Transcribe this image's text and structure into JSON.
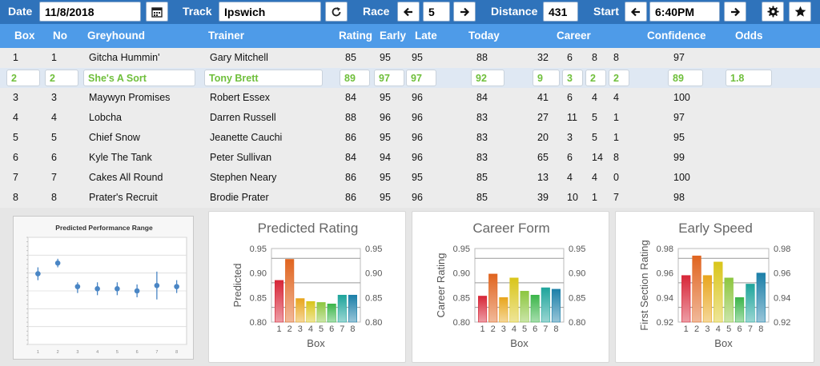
{
  "toolbar": {
    "date_label": "Date",
    "date_value": "11/8/2018",
    "track_label": "Track",
    "track_value": "Ipswich",
    "race_label": "Race",
    "race_value": "5",
    "distance_label": "Distance",
    "distance_value": "431",
    "start_label": "Start",
    "start_value": "6:40PM",
    "icons": [
      "calendar-icon",
      "refresh-icon",
      "arrow-left-icon",
      "arrow-right-icon",
      "gear-icon",
      "star-icon"
    ]
  },
  "table": {
    "headers": {
      "box": "Box",
      "no": "No",
      "greyhound": "Greyhound",
      "trainer": "Trainer",
      "rating": "Rating",
      "early": "Early",
      "late": "Late",
      "today": "Today",
      "career": "Career",
      "confidence": "Confidence",
      "odds": "Odds"
    },
    "rows": [
      {
        "box": "1",
        "no": "1",
        "greyhound": "Gitcha Hummin'",
        "trainer": "Gary Mitchell",
        "rating": "85",
        "early": "95",
        "late": "95",
        "today": "88",
        "c1": "32",
        "c2": "6",
        "c3": "8",
        "c4": "8",
        "confidence": "97",
        "odds": ""
      },
      {
        "box": "2",
        "no": "2",
        "greyhound": "She's A Sort",
        "trainer": "Tony Brett",
        "rating": "89",
        "early": "97",
        "late": "97",
        "today": "92",
        "c1": "9",
        "c2": "3",
        "c3": "2",
        "c4": "2",
        "confidence": "89",
        "odds": "1.8"
      },
      {
        "box": "3",
        "no": "3",
        "greyhound": "Maywyn Promises",
        "trainer": "Robert Essex",
        "rating": "84",
        "early": "95",
        "late": "96",
        "today": "84",
        "c1": "41",
        "c2": "6",
        "c3": "4",
        "c4": "4",
        "confidence": "100",
        "odds": ""
      },
      {
        "box": "4",
        "no": "4",
        "greyhound": "Lobcha",
        "trainer": "Darren Russell",
        "rating": "88",
        "early": "96",
        "late": "96",
        "today": "83",
        "c1": "27",
        "c2": "11",
        "c3": "5",
        "c4": "1",
        "confidence": "97",
        "odds": ""
      },
      {
        "box": "5",
        "no": "5",
        "greyhound": "Chief Snow",
        "trainer": "Jeanette Cauchi",
        "rating": "86",
        "early": "95",
        "late": "96",
        "today": "83",
        "c1": "20",
        "c2": "3",
        "c3": "5",
        "c4": "1",
        "confidence": "95",
        "odds": ""
      },
      {
        "box": "6",
        "no": "6",
        "greyhound": "Kyle The Tank",
        "trainer": "Peter Sullivan",
        "rating": "84",
        "early": "94",
        "late": "96",
        "today": "83",
        "c1": "65",
        "c2": "6",
        "c3": "14",
        "c4": "8",
        "confidence": "99",
        "odds": ""
      },
      {
        "box": "7",
        "no": "7",
        "greyhound": "Cakes All Round",
        "trainer": "Stephen Neary",
        "rating": "86",
        "early": "95",
        "late": "95",
        "today": "85",
        "c1": "13",
        "c2": "4",
        "c3": "4",
        "c4": "0",
        "confidence": "100",
        "odds": ""
      },
      {
        "box": "8",
        "no": "8",
        "greyhound": "Prater's Recruit",
        "trainer": "Brodie Prater",
        "rating": "86",
        "early": "95",
        "late": "96",
        "today": "85",
        "c1": "39",
        "c2": "10",
        "c3": "1",
        "c4": "7",
        "confidence": "98",
        "odds": ""
      }
    ],
    "selected_row": 1,
    "highlight_color": "#6fbf3b"
  },
  "bar_colors": [
    "#d72638",
    "#e0641f",
    "#e8a51d",
    "#d9c51a",
    "#8cc63f",
    "#3cb54a",
    "#1ea49b",
    "#1b7fa8"
  ],
  "chart_data": [
    {
      "type": "scatter",
      "title": "Predicted Performance Range",
      "categories": [
        "1",
        "2",
        "3",
        "4",
        "5",
        "6",
        "7",
        "8"
      ],
      "values": [
        0.88,
        0.93,
        0.82,
        0.81,
        0.81,
        0.8,
        0.825,
        0.82
      ],
      "low": [
        0.85,
        0.91,
        0.79,
        0.78,
        0.78,
        0.77,
        0.76,
        0.79
      ],
      "high": [
        0.91,
        0.95,
        0.84,
        0.84,
        0.84,
        0.83,
        0.89,
        0.85
      ],
      "ylim": [
        0.55,
        1.05
      ],
      "grid": true
    },
    {
      "type": "bar",
      "title": "Predicted Rating",
      "xlabel": "Box",
      "ylabel": "Predicted",
      "categories": [
        "1",
        "2",
        "3",
        "4",
        "5",
        "6",
        "7",
        "8"
      ],
      "values": [
        0.885,
        0.928,
        0.848,
        0.842,
        0.84,
        0.837,
        0.855,
        0.855
      ],
      "ylim": [
        0.8,
        0.95
      ],
      "yticks": [
        "0.80",
        "0.85",
        "0.90",
        "0.95"
      ],
      "reference_lines": [
        0.83,
        0.88,
        0.93
      ]
    },
    {
      "type": "bar",
      "title": "Career Form",
      "xlabel": "Box",
      "ylabel": "Career Rating",
      "categories": [
        "1",
        "2",
        "3",
        "4",
        "5",
        "6",
        "7",
        "8"
      ],
      "values": [
        0.853,
        0.898,
        0.85,
        0.89,
        0.863,
        0.855,
        0.87,
        0.867
      ],
      "ylim": [
        0.8,
        0.95
      ],
      "yticks": [
        "0.80",
        "0.85",
        "0.90",
        "0.95"
      ],
      "reference_lines": [
        0.83,
        0.88,
        0.93
      ]
    },
    {
      "type": "bar",
      "title": "Early Speed",
      "xlabel": "Box",
      "ylabel": "First Section Rating",
      "categories": [
        "1",
        "2",
        "3",
        "4",
        "5",
        "6",
        "7",
        "8"
      ],
      "values": [
        0.958,
        0.974,
        0.958,
        0.969,
        0.956,
        0.94,
        0.951,
        0.96
      ],
      "ylim": [
        0.92,
        0.98
      ],
      "yticks": [
        "0.92",
        "0.94",
        "0.96",
        "0.98"
      ],
      "reference_lines": [
        0.932,
        0.952,
        0.972
      ]
    }
  ]
}
